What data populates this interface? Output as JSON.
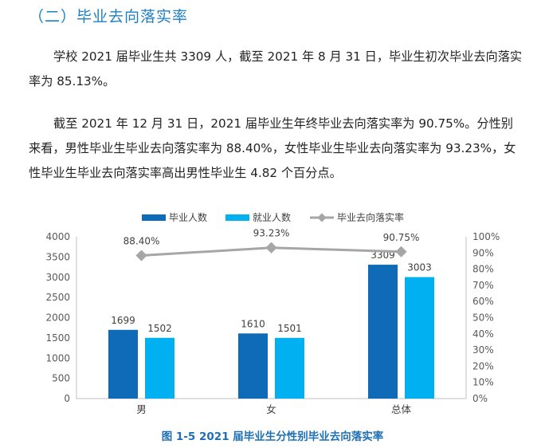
{
  "section_heading": "（二）毕业去向落实率",
  "paragraphs": [
    "学校 2021 届毕业生共 3309 人，截至 2021 年 8 月 31 日，毕业生初次毕业去向落实率为 85.13%。",
    "截至 2021 年 12 月 31 日，2021 届毕业生年终毕业去向落实率为 90.75%。分性别来看，男性毕业生毕业去向落实率为 88.40%，女性毕业生毕业去向落实率为 93.23%，女性毕业生毕业去向落实率高出男性毕业生 4.82 个百分点。"
  ],
  "figure_caption": "图 1-5 2021 届毕业生分性别毕业去向落实率",
  "colors": {
    "heading": "#1f7fc4",
    "graduates_bar": "#0f6ab8",
    "employed_bar": "#00b0f0",
    "rate_line": "#a6a6a6",
    "caption": "#1f6fb4"
  },
  "chart_data": {
    "type": "bar",
    "categories": [
      "男",
      "女",
      "总体"
    ],
    "series": [
      {
        "name": "毕业人数",
        "kind": "bar",
        "axis": "left",
        "values": [
          1699,
          1610,
          3309
        ]
      },
      {
        "name": "就业人数",
        "kind": "bar",
        "axis": "left",
        "values": [
          1502,
          1501,
          3003
        ]
      },
      {
        "name": "毕业去向落实率",
        "kind": "line",
        "axis": "right",
        "values": [
          88.4,
          93.23,
          90.75
        ],
        "labels": [
          "88.40%",
          "93.23%",
          "90.75%"
        ]
      }
    ],
    "ylim_left": [
      0,
      4000
    ],
    "ylim_right": [
      0,
      100
    ],
    "left_ticks": [
      "0",
      "500",
      "1000",
      "1500",
      "2000",
      "2500",
      "3000",
      "3500",
      "4000"
    ],
    "right_ticks": [
      "0%",
      "10%",
      "20%",
      "30%",
      "40%",
      "50%",
      "60%",
      "70%",
      "80%",
      "90%",
      "100%"
    ],
    "legend_position": "top",
    "grid": false
  }
}
